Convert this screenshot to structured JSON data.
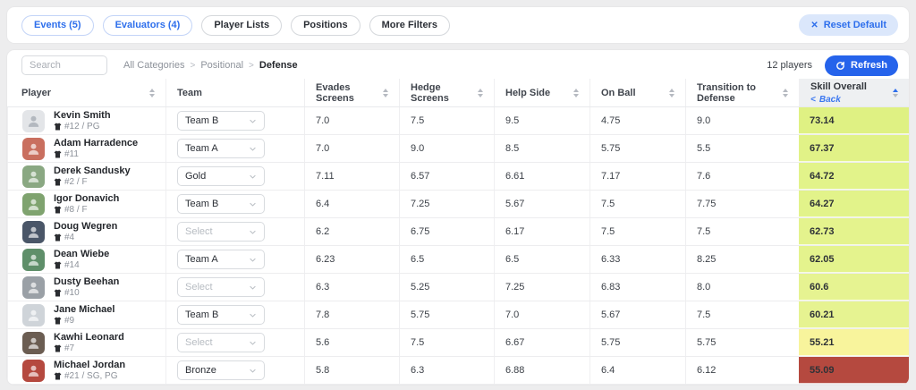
{
  "filters": {
    "pills": [
      {
        "label": "Events (5)",
        "active": true
      },
      {
        "label": "Evaluators (4)",
        "active": true
      },
      {
        "label": "Player Lists",
        "active": false
      },
      {
        "label": "Positions",
        "active": false
      },
      {
        "label": "More Filters",
        "active": false
      }
    ],
    "reset_label": "Reset Default"
  },
  "toolbar": {
    "search_placeholder": "Search",
    "breadcrumb": [
      "All Categories",
      "Positional",
      "Defense"
    ],
    "players_count": "12 players",
    "refresh_label": "Refresh"
  },
  "table": {
    "columns": [
      {
        "label": "Player",
        "sortable": true
      },
      {
        "label": "Team",
        "sortable": false
      },
      {
        "label": "Evades Screens",
        "sortable": true
      },
      {
        "label": "Hedge Screens",
        "sortable": true
      },
      {
        "label": "Help Side",
        "sortable": true
      },
      {
        "label": "On Ball",
        "sortable": true
      },
      {
        "label": "Transition to Defense",
        "sortable": true
      },
      {
        "label": "Skill Overall",
        "sortable": true,
        "sorted": true,
        "back_label": "Back"
      }
    ],
    "rows": [
      {
        "name": "Kevin Smith",
        "jersey": "#12 / PG",
        "team": {
          "value": "Team B",
          "placeholder": false
        },
        "values": [
          "7.0",
          "7.5",
          "9.5",
          "4.75",
          "9.0"
        ],
        "overall": {
          "value": "73.14",
          "color": "#dff183"
        },
        "avatar": {
          "kind": "placeholder",
          "color": "#e3e5e8"
        }
      },
      {
        "name": "Adam Harradence",
        "jersey": "#11",
        "team": {
          "value": "Team A",
          "placeholder": false
        },
        "values": [
          "7.0",
          "9.0",
          "8.5",
          "5.75",
          "5.5"
        ],
        "overall": {
          "value": "67.37",
          "color": "#e1f287"
        },
        "avatar": {
          "kind": "photo",
          "color": "#c96f5f"
        }
      },
      {
        "name": "Derek Sandusky",
        "jersey": "#2 / F",
        "team": {
          "value": "Gold",
          "placeholder": false
        },
        "values": [
          "7.11",
          "6.57",
          "6.61",
          "7.17",
          "7.6"
        ],
        "overall": {
          "value": "64.72",
          "color": "#e2f38a"
        },
        "avatar": {
          "kind": "photo",
          "color": "#8aa882"
        }
      },
      {
        "name": "Igor Donavich",
        "jersey": "#8 / F",
        "team": {
          "value": "Team B",
          "placeholder": false
        },
        "values": [
          "6.4",
          "7.25",
          "5.67",
          "7.5",
          "7.75"
        ],
        "overall": {
          "value": "64.27",
          "color": "#e2f38a"
        },
        "avatar": {
          "kind": "photo",
          "color": "#7fa36f"
        }
      },
      {
        "name": "Doug Wegren",
        "jersey": "#4",
        "team": {
          "value": "Select",
          "placeholder": true
        },
        "values": [
          "6.2",
          "6.75",
          "6.17",
          "7.5",
          "7.5"
        ],
        "overall": {
          "value": "62.73",
          "color": "#e4f38d"
        },
        "avatar": {
          "kind": "photo",
          "color": "#4a5668"
        }
      },
      {
        "name": "Dean Wiebe",
        "jersey": "#14",
        "team": {
          "value": "Team A",
          "placeholder": false
        },
        "values": [
          "6.23",
          "6.5",
          "6.5",
          "6.33",
          "8.25"
        ],
        "overall": {
          "value": "62.05",
          "color": "#e4f38d"
        },
        "avatar": {
          "kind": "photo",
          "color": "#5f8f6a"
        }
      },
      {
        "name": "Dusty Beehan",
        "jersey": "#10",
        "team": {
          "value": "Select",
          "placeholder": true
        },
        "values": [
          "6.3",
          "5.25",
          "7.25",
          "6.83",
          "8.0"
        ],
        "overall": {
          "value": "60.6",
          "color": "#e6f391"
        },
        "avatar": {
          "kind": "photo",
          "color": "#9aa0a6"
        }
      },
      {
        "name": "Jane Michael",
        "jersey": "#9",
        "team": {
          "value": "Team B",
          "placeholder": false
        },
        "values": [
          "7.8",
          "5.75",
          "7.0",
          "5.67",
          "7.5"
        ],
        "overall": {
          "value": "60.21",
          "color": "#e6f391"
        },
        "avatar": {
          "kind": "photo",
          "color": "#cfd4d9"
        }
      },
      {
        "name": "Kawhi Leonard",
        "jersey": "#7",
        "team": {
          "value": "Select",
          "placeholder": true
        },
        "values": [
          "5.6",
          "7.5",
          "6.67",
          "5.75",
          "5.75"
        ],
        "overall": {
          "value": "55.21",
          "color": "#f8f49c"
        },
        "avatar": {
          "kind": "photo",
          "color": "#6b5d52"
        }
      },
      {
        "name": "Michael Jordan",
        "jersey": "#21 / SG, PG",
        "team": {
          "value": "Bronze",
          "placeholder": false
        },
        "values": [
          "5.8",
          "6.3",
          "6.88",
          "6.4",
          "6.12"
        ],
        "overall": {
          "value": "55.09",
          "color": "#b5493f"
        },
        "avatar": {
          "kind": "photo",
          "color": "#b5493f"
        }
      }
    ]
  }
}
